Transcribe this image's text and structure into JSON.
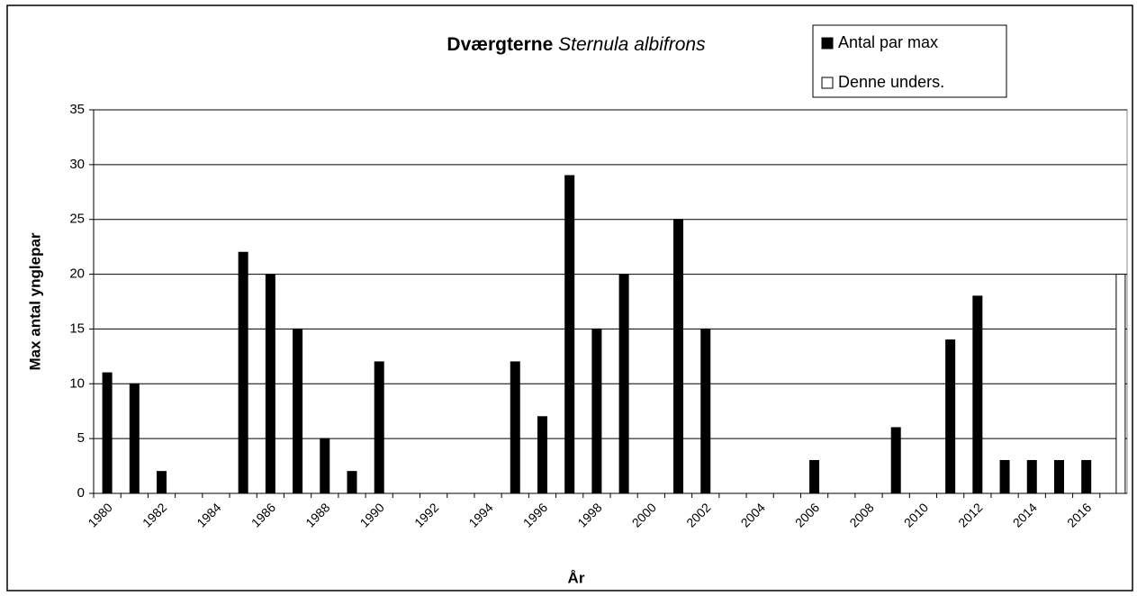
{
  "chart_data": {
    "type": "bar",
    "title": "Dværgterne",
    "title_italic": "Sternula albifrons",
    "x_label": "År",
    "y_label": "Max antal ynglepar",
    "categories": [
      "1980",
      null,
      "1982",
      null,
      "1984",
      null,
      "1986",
      null,
      "1988",
      null,
      "1990",
      null,
      "1992",
      null,
      "1994",
      null,
      "1996",
      null,
      "1998",
      null,
      "2000",
      null,
      "2002",
      null,
      "2004",
      null,
      "2006",
      null,
      "2008",
      null,
      "2010",
      null,
      "2012",
      null,
      "2014",
      null,
      "2016",
      null
    ],
    "series": [
      {
        "name": "Antal par max",
        "color": "#000000",
        "values": [
          11,
          10,
          2,
          0,
          0,
          22,
          20,
          15,
          5,
          2,
          12,
          0,
          0,
          0,
          0,
          12,
          7,
          29,
          15,
          20,
          0,
          25,
          15,
          0,
          0,
          0,
          3,
          0,
          0,
          6,
          0,
          14,
          18,
          3,
          3,
          3,
          3,
          null
        ]
      },
      {
        "name": "Denne unders.",
        "color": "#ffffff",
        "values": [
          null,
          null,
          null,
          null,
          null,
          null,
          null,
          null,
          null,
          null,
          null,
          null,
          null,
          null,
          null,
          null,
          null,
          null,
          null,
          null,
          null,
          null,
          null,
          null,
          null,
          null,
          null,
          null,
          null,
          null,
          null,
          null,
          null,
          null,
          null,
          null,
          null,
          20
        ]
      }
    ],
    "ylim": [
      0,
      35
    ],
    "yticks": [
      0,
      5,
      10,
      15,
      20,
      25,
      30,
      35
    ],
    "grid": true,
    "legend": "top-right"
  }
}
